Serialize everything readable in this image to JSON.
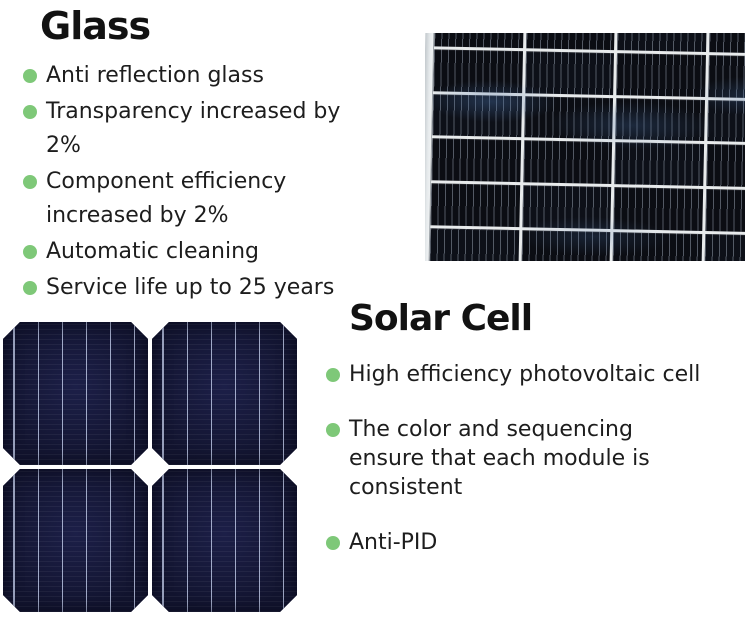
{
  "page": {
    "background": "#ffffff"
  },
  "glass_section": {
    "title": "Glass",
    "items": [
      "Anti reflection glass",
      "Transparency increased by 2%",
      "Component efficiency increased by 2%",
      "Automatic cleaning",
      "Service life up to 25 years"
    ]
  },
  "solar_cell_section": {
    "title": "Solar Cell",
    "items": [
      "High efficiency photovoltaic cell",
      "The color and sequencing ensure that each module is consistent",
      "Anti-PID"
    ]
  },
  "images": {
    "panel_photo": "solar-panel-module-closeup-photo",
    "cells_photo": "solar-cells-2x2-closeup-photo"
  },
  "colors": {
    "bullet_green": "#7ec878",
    "heading_text": "#121212",
    "body_text": "#1d1d1d",
    "panel_cell_dark": "#0b0d13",
    "solar_cell_navy": "#131536",
    "frame_gray": "#e8ecee"
  }
}
